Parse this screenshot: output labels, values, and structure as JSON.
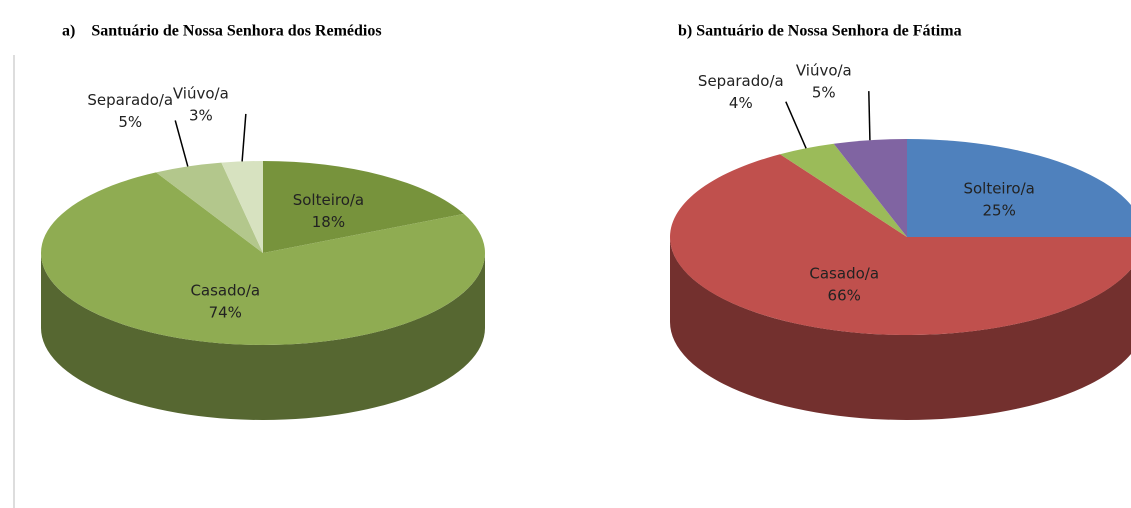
{
  "chart_data": [
    {
      "type": "pie",
      "title": "a)    Santuário de Nossa Senhora dos Remédios",
      "categories": [
        "Solteiro/a",
        "Casado/a",
        "Separado/a",
        "Viúvo/a"
      ],
      "values": [
        18,
        74,
        5,
        3
      ],
      "value_labels": [
        "18%",
        "74%",
        "5%",
        "3%"
      ],
      "colors": [
        "#77933c",
        "#8fac52",
        "#b3c78c",
        "#d7e2c0"
      ]
    },
    {
      "type": "pie",
      "title": "b) Santuário de Nossa Senhora de Fátima",
      "categories": [
        "Solteiro/a",
        "Casado/a",
        "Separado/a",
        "Viúvo/a"
      ],
      "values": [
        25,
        66,
        4,
        5
      ],
      "value_labels": [
        "25%",
        "66%",
        "4%",
        "5%"
      ],
      "colors": [
        "#4f81bd",
        "#c0504d",
        "#9bbb59",
        "#8064a2"
      ]
    }
  ]
}
